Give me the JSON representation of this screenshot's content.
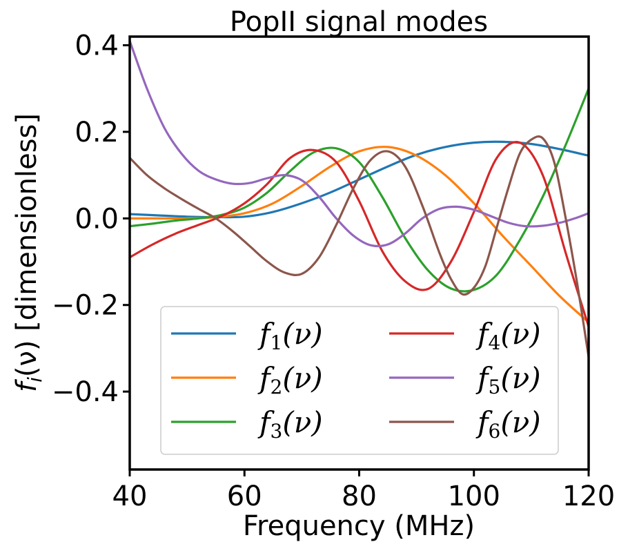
{
  "chart_data": {
    "type": "line",
    "title": "PopII signal modes",
    "xlabel": "Frequency (MHz)",
    "ylabel": "f_i(ν) [dimensionless]",
    "xlim": [
      40,
      120
    ],
    "ylim": [
      -0.58,
      0.42
    ],
    "xticks": [
      40,
      60,
      80,
      100,
      120
    ],
    "xtick_labels": [
      "40",
      "60",
      "80",
      "100",
      "120"
    ],
    "yticks": [
      0.4,
      0.2,
      0.0,
      -0.2,
      -0.4
    ],
    "ytick_labels": [
      "0.4",
      "0.2",
      "0.0",
      "−0.2",
      "−0.4"
    ],
    "grid": false,
    "legend": {
      "position": "lower-center",
      "columns": 2
    },
    "series": [
      {
        "name": "f1(ν)",
        "color": "#1f77b4",
        "x": [
          40,
          45,
          50,
          55,
          60,
          65,
          70,
          75,
          80,
          85,
          90,
          95,
          100,
          105,
          110,
          115,
          120
        ],
        "y": [
          0.01,
          0.007,
          0.004,
          0.003,
          0.004,
          0.015,
          0.035,
          0.06,
          0.09,
          0.12,
          0.147,
          0.165,
          0.175,
          0.177,
          0.172,
          0.16,
          0.145
        ]
      },
      {
        "name": "f2(ν)",
        "color": "#ff7f0e",
        "x": [
          40,
          45,
          50,
          55,
          60,
          65,
          70,
          75,
          80,
          85,
          90,
          95,
          100,
          105,
          110,
          115,
          120
        ],
        "y": [
          0.0,
          0.0,
          0.0,
          0.003,
          0.012,
          0.035,
          0.075,
          0.12,
          0.155,
          0.165,
          0.145,
          0.1,
          0.035,
          -0.04,
          -0.11,
          -0.18,
          -0.24
        ]
      },
      {
        "name": "f3(ν)",
        "color": "#2ca02c",
        "x": [
          40,
          44,
          48,
          52,
          56,
          60,
          64,
          68,
          72,
          76,
          80,
          84,
          88,
          92,
          96,
          100,
          104,
          108,
          112,
          116,
          120
        ],
        "y": [
          -0.018,
          -0.012,
          -0.005,
          0.0,
          0.008,
          0.025,
          0.06,
          0.11,
          0.152,
          0.162,
          0.13,
          0.05,
          -0.045,
          -0.12,
          -0.162,
          -0.165,
          -0.13,
          -0.05,
          0.05,
          0.17,
          0.3
        ]
      },
      {
        "name": "f4(ν)",
        "color": "#d62728",
        "x": [
          40,
          44,
          48,
          52,
          56,
          60,
          64,
          68,
          72,
          76,
          80,
          84,
          88,
          92,
          96,
          100,
          104,
          108,
          112,
          116,
          120
        ],
        "y": [
          -0.09,
          -0.06,
          -0.035,
          -0.015,
          0.005,
          0.035,
          0.08,
          0.14,
          0.158,
          0.13,
          0.04,
          -0.075,
          -0.145,
          -0.163,
          -0.1,
          0.015,
          0.14,
          0.175,
          0.1,
          -0.08,
          -0.25
        ]
      },
      {
        "name": "f5(ν)",
        "color": "#9467bd",
        "x": [
          40,
          43,
          46,
          49,
          52,
          55,
          58,
          61,
          64,
          67,
          70,
          73,
          76,
          79,
          82,
          85,
          88,
          91,
          94,
          97,
          100,
          103,
          106,
          109,
          112,
          115,
          118,
          120
        ],
        "y": [
          0.41,
          0.3,
          0.21,
          0.15,
          0.11,
          0.09,
          0.08,
          0.082,
          0.093,
          0.1,
          0.088,
          0.05,
          0.0,
          -0.04,
          -0.062,
          -0.06,
          -0.035,
          0.0,
          0.022,
          0.027,
          0.02,
          0.005,
          -0.01,
          -0.018,
          -0.017,
          -0.01,
          0.002,
          0.012
        ]
      },
      {
        "name": "f6(ν)",
        "color": "#8c564b",
        "x": [
          40,
          43,
          46,
          49,
          52,
          55,
          58,
          61,
          64,
          67,
          70,
          73,
          76,
          79,
          82,
          85,
          88,
          91,
          94,
          96,
          98,
          100,
          102,
          104,
          106,
          108,
          110,
          112,
          114,
          116,
          118,
          120
        ],
        "y": [
          0.14,
          0.1,
          0.07,
          0.045,
          0.022,
          0.0,
          -0.03,
          -0.065,
          -0.1,
          -0.125,
          -0.128,
          -0.09,
          -0.015,
          0.07,
          0.135,
          0.155,
          0.12,
          0.03,
          -0.08,
          -0.14,
          -0.175,
          -0.16,
          -0.11,
          -0.02,
          0.07,
          0.15,
          0.182,
          0.185,
          0.13,
          0.0,
          -0.15,
          -0.32
        ]
      }
    ]
  }
}
